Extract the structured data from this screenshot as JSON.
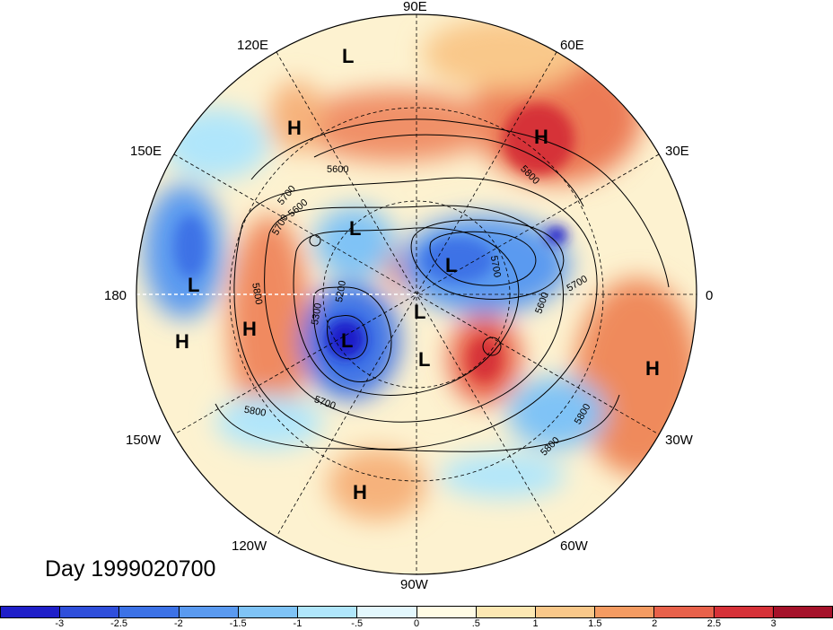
{
  "map": {
    "title": "Day 1999020700",
    "longitude_labels": [
      "90E",
      "60E",
      "30E",
      "0",
      "30W",
      "60W",
      "90W",
      "120W",
      "150W",
      "180",
      "150E",
      "120E"
    ],
    "pressure_centers": [
      {
        "label": "L"
      },
      {
        "label": "H"
      },
      {
        "label": "H"
      },
      {
        "label": "L"
      },
      {
        "label": "L"
      },
      {
        "label": "L"
      },
      {
        "label": "L"
      },
      {
        "label": "L"
      },
      {
        "label": "L"
      },
      {
        "label": "H"
      },
      {
        "label": "H"
      },
      {
        "label": "H"
      },
      {
        "label": "H"
      }
    ],
    "contour_labels": [
      "5800",
      "5700",
      "5600",
      "5700",
      "5600",
      "5700",
      "5800",
      "5300",
      "5200",
      "5700",
      "5800",
      "5800",
      "5800",
      "5600",
      "5700"
    ]
  },
  "colorbar": {
    "tick_labels": [
      "-3",
      "-2.5",
      "-2",
      "-1.5",
      "-1",
      "-.5",
      "0",
      ".5",
      "1",
      "1.5",
      "2",
      "2.5",
      "3"
    ],
    "colors": [
      "#1f1fc9",
      "#2f4fdb",
      "#3c72e6",
      "#5a9af0",
      "#7fc3f6",
      "#b0e6fb",
      "#e3f7fd",
      "#fffbe4",
      "#fde8b3",
      "#f9c88a",
      "#f49b62",
      "#e8614a",
      "#d63138",
      "#a5122a"
    ]
  }
}
